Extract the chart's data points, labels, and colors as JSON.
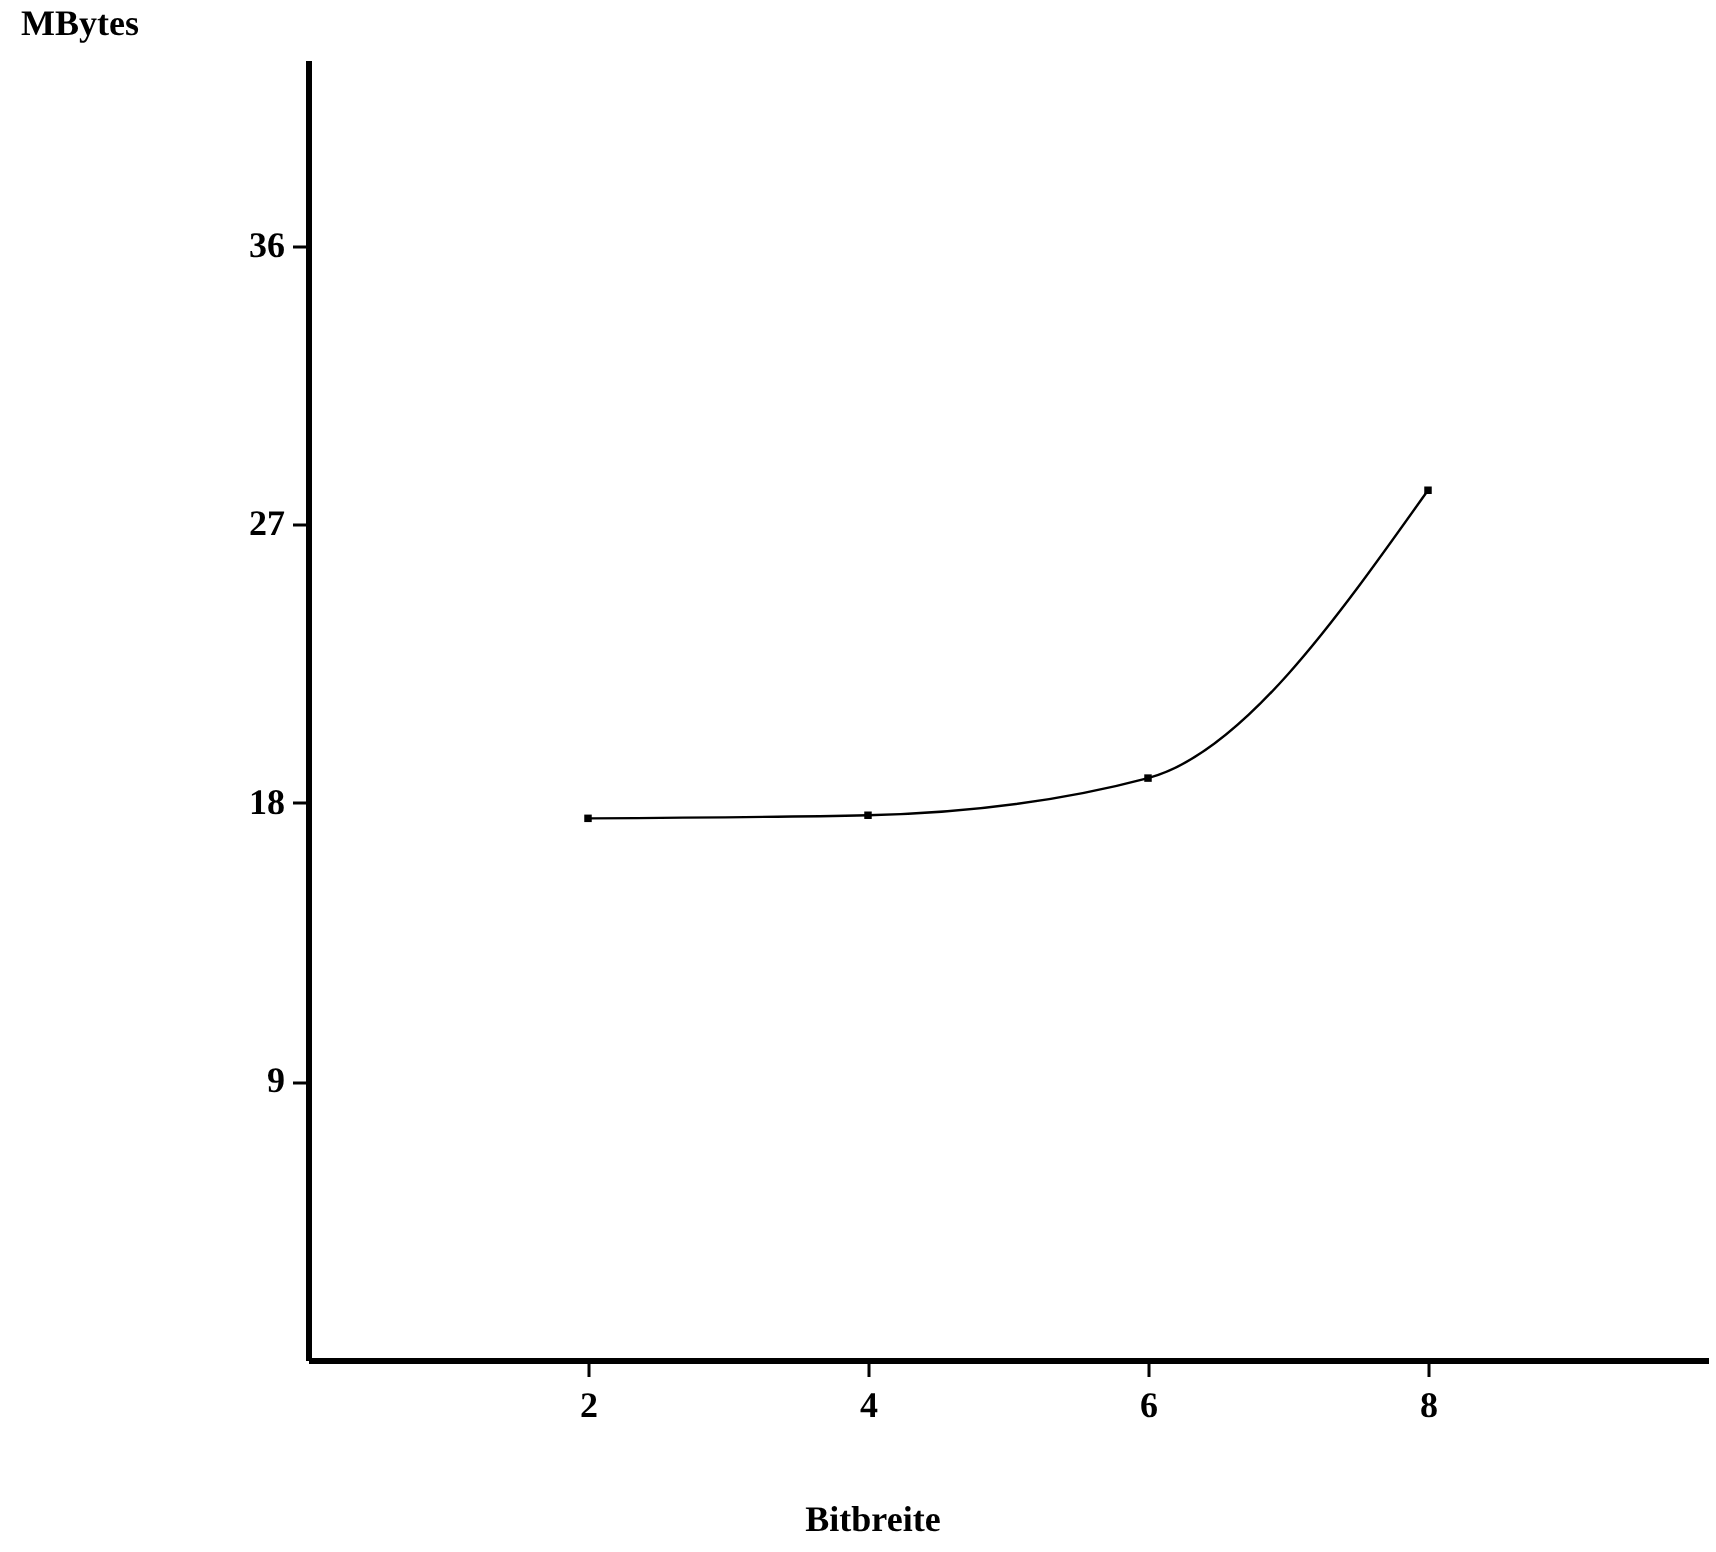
{
  "chart_data": {
    "type": "line",
    "xlabel": "Bitbreite",
    "ylabel": "MBytes",
    "x": [
      2,
      4,
      6,
      8
    ],
    "series": [
      {
        "color": "#000000",
        "values": [
          17.5,
          17.6,
          18.8,
          28.1
        ]
      }
    ],
    "xlim": [
      0,
      10
    ],
    "ylim": [
      0,
      42
    ],
    "xticks": [
      2,
      4,
      6,
      8
    ],
    "yticks": [
      9,
      18,
      27,
      36
    ],
    "grid": false,
    "marker": "square",
    "line_style": "solid",
    "legend": false
  }
}
